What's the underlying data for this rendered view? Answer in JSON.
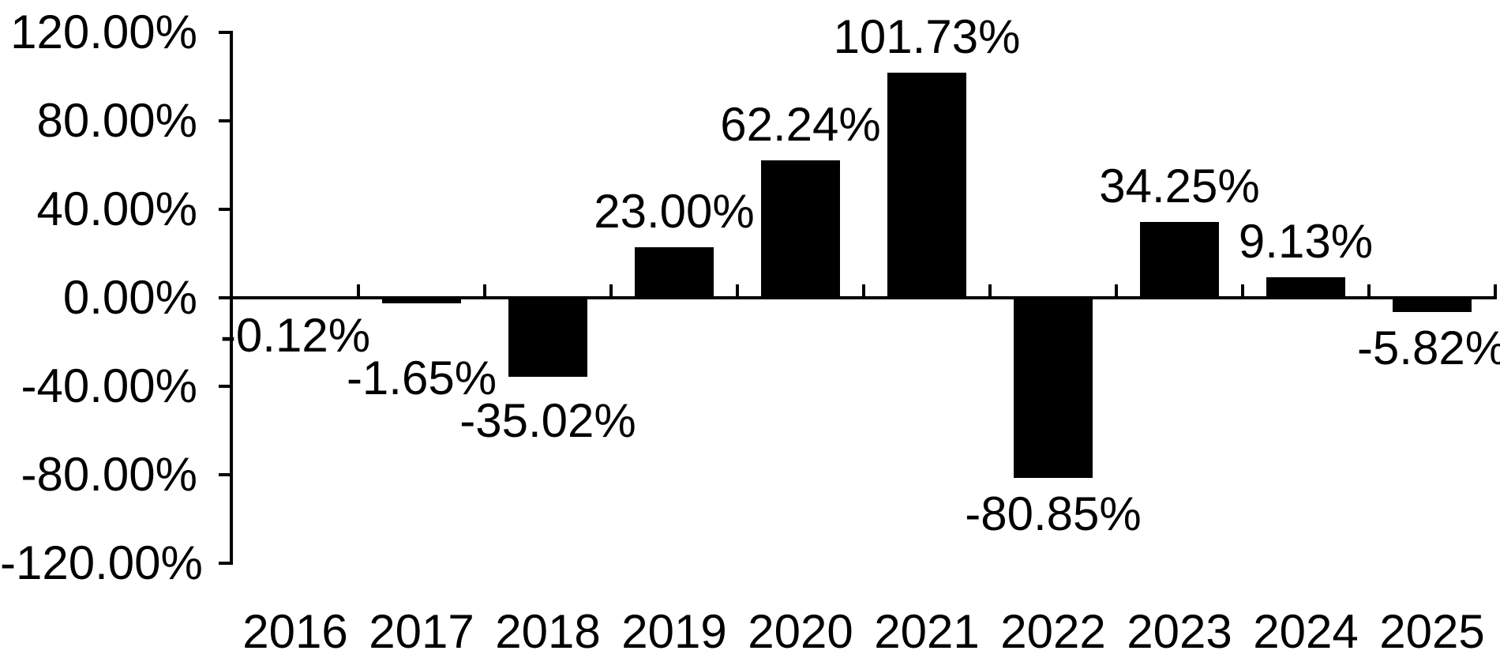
{
  "chart_data": {
    "type": "bar",
    "categories": [
      "2016",
      "2017",
      "2018",
      "2019",
      "2020",
      "2021",
      "2022",
      "2023",
      "2024",
      "2025"
    ],
    "values": [
      -0.12,
      -1.65,
      -35.02,
      23.0,
      62.24,
      101.73,
      -80.85,
      34.25,
      9.13,
      -5.82
    ],
    "value_labels": [
      "-0.12%",
      "-1.65%",
      "-35.02%",
      "23.00%",
      "62.24%",
      "101.73%",
      "-80.85%",
      "34.25%",
      "9.13%",
      "-5.82%"
    ],
    "y_axis": {
      "tick_values": [
        120,
        80,
        40,
        0,
        -40,
        -80,
        -120
      ],
      "tick_labels": [
        "120.00%",
        "80.00%",
        "40.00%",
        "0.00%",
        "-40.00%",
        "-80.00%",
        "-120.00%"
      ]
    },
    "ylim": [
      -120,
      120
    ],
    "grid": false,
    "legend": "none",
    "bar_color": "#000000",
    "background_color": "#ffffff",
    "text_color": "#000000"
  }
}
